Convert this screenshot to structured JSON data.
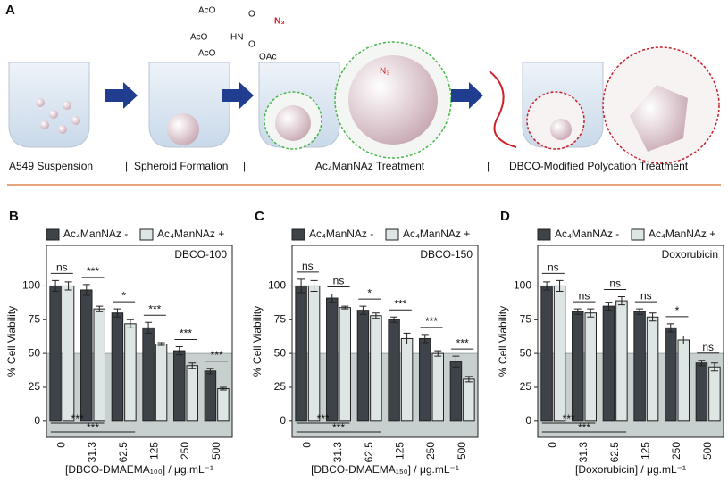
{
  "panel_a": {
    "label": "A",
    "steps": [
      "A549 Suspension",
      "Spheroid Formation",
      "Ac₄ManNAz Treatment",
      "DBCO-Modified Polycation Treatment"
    ],
    "structure_labels": [
      "AcO",
      "HN",
      "O",
      "N₃",
      "AcO",
      "AcO",
      "O",
      "OAc"
    ],
    "azide": "N₃"
  },
  "chart_data": [
    {
      "type": "bar",
      "panel": "B",
      "annotation": "DBCO-100",
      "x_label": "[DBCO-DMAEMA₁₀₀] / μg.mL⁻¹",
      "y_label": "% Cell Viability",
      "categories": [
        "0",
        "31.3",
        "62.5",
        "125",
        "250",
        "500"
      ],
      "series": [
        {
          "name": "Ac₄ManNAz -",
          "color": "#3d4349",
          "values": [
            100,
            97,
            80,
            69,
            52,
            37
          ],
          "errors": [
            4,
            4,
            3,
            4,
            3,
            2
          ]
        },
        {
          "name": "Ac₄ManNAz +",
          "color": "#dde5e5",
          "values": [
            100,
            83,
            72,
            57,
            41,
            24
          ],
          "errors": [
            3,
            2,
            3,
            1,
            2,
            1
          ]
        }
      ],
      "ylim": [
        -12,
        130
      ],
      "yticks": [
        0,
        25,
        50,
        75,
        100
      ],
      "shade_below": 50,
      "shade_color": "#c8cfcf",
      "significance": [
        "ns",
        "***",
        "*",
        "***",
        "***",
        "***"
      ],
      "bottom_brackets": [
        {
          "from": "0",
          "to": "31.3",
          "label": "***"
        },
        {
          "from": "0",
          "to": "62.5",
          "label": "***"
        }
      ]
    },
    {
      "type": "bar",
      "panel": "C",
      "annotation": "DBCO-150",
      "x_label": "[DBCO-DMAEMA₁₅₀] / μg.mL⁻¹",
      "y_label": "% Cell Viability",
      "categories": [
        "0",
        "31.3",
        "62.5",
        "125",
        "250",
        "500"
      ],
      "series": [
        {
          "name": "Ac₄ManNAz -",
          "color": "#3d4349",
          "values": [
            100,
            91,
            82,
            75,
            61,
            44
          ],
          "errors": [
            5,
            3,
            3,
            2,
            3,
            4
          ]
        },
        {
          "name": "Ac₄ManNAz +",
          "color": "#dde5e5",
          "values": [
            100,
            84,
            78,
            61,
            50,
            31
          ],
          "errors": [
            4,
            1,
            2,
            4,
            2,
            2
          ]
        }
      ],
      "ylim": [
        -12,
        130
      ],
      "yticks": [
        0,
        25,
        50,
        75,
        100
      ],
      "shade_below": 50,
      "shade_color": "#c8cfcf",
      "significance": [
        "ns",
        "ns",
        "*",
        "***",
        "***",
        "***"
      ],
      "bottom_brackets": [
        {
          "from": "0",
          "to": "31.3",
          "label": "***"
        },
        {
          "from": "0",
          "to": "62.5",
          "label": "***"
        }
      ]
    },
    {
      "type": "bar",
      "panel": "D",
      "annotation": "Doxorubicin",
      "x_label": "[Doxorubicin] / μg.mL⁻¹",
      "y_label": "% Cell Viability",
      "categories": [
        "0",
        "31.3",
        "62.5",
        "125",
        "250",
        "500"
      ],
      "series": [
        {
          "name": "Ac₄ManNAz -",
          "color": "#3d4349",
          "values": [
            100,
            81,
            85,
            81,
            69,
            43
          ],
          "errors": [
            3,
            2,
            3,
            2,
            3,
            2
          ]
        },
        {
          "name": "Ac₄ManNAz +",
          "color": "#dde5e5",
          "values": [
            100,
            80,
            89,
            77,
            60,
            40
          ],
          "errors": [
            4,
            3,
            3,
            3,
            3,
            3
          ]
        }
      ],
      "ylim": [
        -12,
        130
      ],
      "yticks": [
        0,
        25,
        50,
        75,
        100
      ],
      "shade_below": 50,
      "shade_color": "#c8cfcf",
      "significance": [
        "ns",
        "ns",
        "ns",
        "ns",
        "*",
        "ns"
      ],
      "bottom_brackets": [
        {
          "from": "0",
          "to": "31.3",
          "label": "***"
        },
        {
          "from": "0",
          "to": "62.5",
          "label": "***"
        }
      ]
    }
  ]
}
